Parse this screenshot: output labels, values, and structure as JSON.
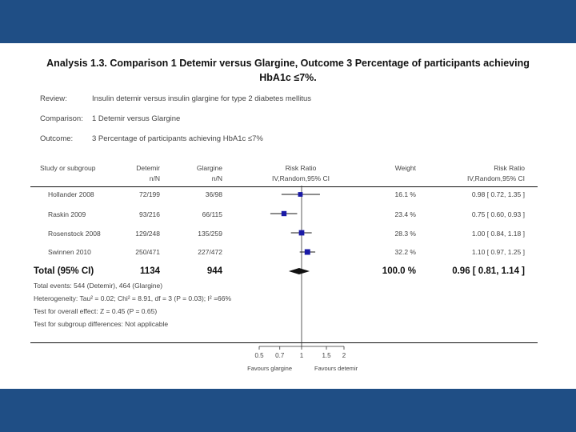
{
  "title": {
    "line1": "Analysis 1.3.   Comparison 1 Detemir versus Glargine, Outcome 3 Percentage of participants achieving",
    "line2": "HbA1c ≤7%."
  },
  "meta": {
    "review_label": "Review:",
    "review_value": "Insulin detemir versus insulin glargine for type 2 diabetes mellitus",
    "comparison_label": "Comparison:",
    "comparison_value": "1 Detemir versus Glargine",
    "outcome_label": "Outcome:",
    "outcome_value": "3 Percentage of participants achieving HbA1c ≤7%"
  },
  "headers": {
    "study": "Study or subgroup",
    "detemir": "Detemir",
    "detemir_sub": "n/N",
    "glargine": "Glargine",
    "glargine_sub": "n/N",
    "rr": "Risk Ratio",
    "rr_sub": "IV,Random,95% CI",
    "weight": "Weight",
    "rr2": "Risk Ratio",
    "rr2_sub": "IV,Random,95% CI"
  },
  "total_row": {
    "label": "Total (95% CI)",
    "detemir": "1134",
    "glargine": "944",
    "weight": "100.0 %",
    "ci": "0.96 [ 0.81, 1.14 ]"
  },
  "footnotes": {
    "events": "Total events: 544 (Detemir), 464 (Glargine)",
    "heterogeneity": "Heterogeneity: Tau² = 0.02; Chi² = 8.91, df = 3 (P = 0.03); I² =66%",
    "overall": "Test for overall effect: Z = 0.45 (P = 0.65)",
    "subgroup": "Test for subgroup differences: Not applicable"
  },
  "axis": {
    "favours_left": "Favours glargine",
    "favours_right": "Favours detemir"
  },
  "chart_data": {
    "type": "scatter",
    "x_scale": "log",
    "xlim": [
      0.5,
      2
    ],
    "ticks": [
      0.5,
      0.7,
      1,
      1.5,
      2
    ],
    "tick_labels": [
      "0.5",
      "0.7",
      "1",
      "1.5",
      "2"
    ],
    "null_line": 1,
    "studies": [
      {
        "name": "Hollander 2008",
        "detemir": "72/199",
        "glargine": "36/98",
        "rr": 0.98,
        "lo": 0.72,
        "hi": 1.35,
        "weight": 16.1,
        "weight_label": "16.1 %",
        "ci_label": "0.98 [ 0.72, 1.35 ]"
      },
      {
        "name": "Raskin 2009",
        "detemir": "93/216",
        "glargine": "66/115",
        "rr": 0.75,
        "lo": 0.6,
        "hi": 0.93,
        "weight": 23.4,
        "weight_label": "23.4 %",
        "ci_label": "0.75 [ 0.60, 0.93 ]"
      },
      {
        "name": "Rosenstock 2008",
        "detemir": "129/248",
        "glargine": "135/259",
        "rr": 1.0,
        "lo": 0.84,
        "hi": 1.18,
        "weight": 28.3,
        "weight_label": "28.3 %",
        "ci_label": "1.00 [ 0.84, 1.18 ]"
      },
      {
        "name": "Swinnen 2010",
        "detemir": "250/471",
        "glargine": "227/472",
        "rr": 1.1,
        "lo": 0.97,
        "hi": 1.25,
        "weight": 32.2,
        "weight_label": "32.2 %",
        "ci_label": "1.10 [ 0.97, 1.25 ]"
      }
    ],
    "total": {
      "rr": 0.96,
      "lo": 0.81,
      "hi": 1.14
    },
    "colors": {
      "marker": "#1a1aa6",
      "diamond": "#111111",
      "line": "#333333"
    }
  }
}
